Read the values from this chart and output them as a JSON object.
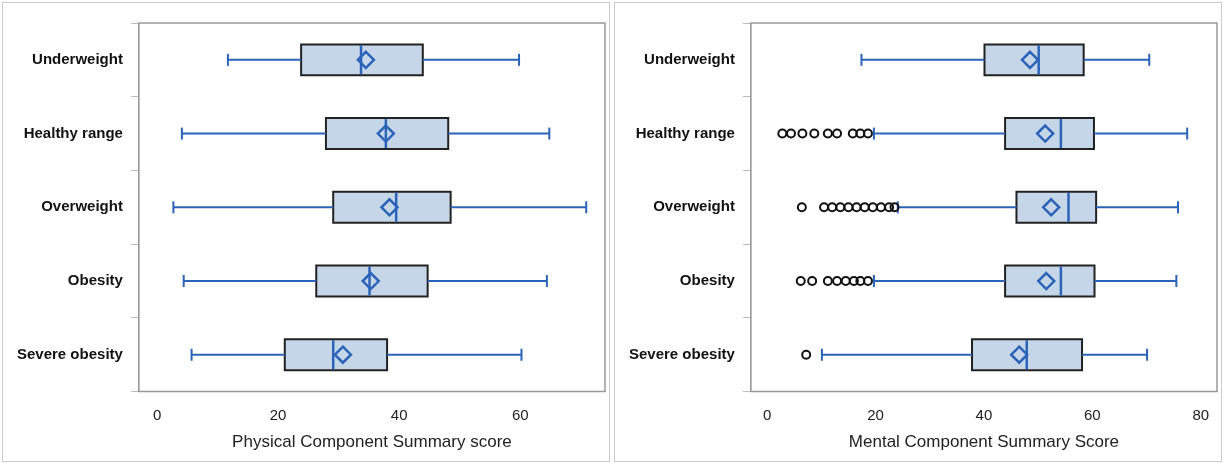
{
  "chart_data": [
    {
      "type": "box",
      "orientation": "horizontal",
      "xlabel": "Physical Component Summary score",
      "categories": [
        "Underweight",
        "Healthy range",
        "Overweight",
        "Obesity",
        "Severe obesity"
      ],
      "color": "#c5d6e9",
      "marker": "diamond",
      "xlim": [
        -3,
        74
      ],
      "xticks": [
        0,
        20,
        40,
        60
      ],
      "boxes": [
        {
          "low": 11.7,
          "q1": 23.8,
          "median": 33.7,
          "q3": 43.9,
          "high": 59.8,
          "mean": 34.5
        },
        {
          "low": 4.1,
          "q1": 27.9,
          "median": 37.8,
          "q3": 48.1,
          "high": 64.8,
          "mean": 37.8
        },
        {
          "low": 2.7,
          "q1": 29.1,
          "median": 39.5,
          "q3": 48.5,
          "high": 70.9,
          "mean": 38.4
        },
        {
          "low": 4.4,
          "q1": 26.3,
          "median": 35.1,
          "q3": 44.7,
          "high": 64.4,
          "mean": 35.3
        },
        {
          "low": 5.7,
          "q1": 21.1,
          "median": 29.1,
          "q3": 38.0,
          "high": 60.2,
          "mean": 30.7
        }
      ]
    },
    {
      "type": "box",
      "orientation": "horizontal",
      "xlabel": "Mental Component Summary Score",
      "categories": [
        "Underweight",
        "Healthy range",
        "Overweight",
        "Obesity",
        "Severe obesity"
      ],
      "color": "#c5d6e9",
      "marker": "diamond",
      "xlim": [
        -3,
        83
      ],
      "xticks": [
        0,
        20,
        40,
        60,
        80
      ],
      "boxes": [
        {
          "low": 17.4,
          "q1": 40.1,
          "median": 50.1,
          "q3": 58.4,
          "high": 70.5,
          "mean": 48.5
        },
        {
          "low": 19.7,
          "q1": 43.9,
          "median": 54.2,
          "q3": 60.3,
          "high": 77.5,
          "mean": 51.3,
          "outliers": [
            2.8,
            4.4,
            6.5,
            8.7,
            11.2,
            12.9,
            15.8,
            17.2,
            18.6
          ]
        },
        {
          "low": 24.1,
          "q1": 46.0,
          "median": 55.6,
          "q3": 60.7,
          "high": 75.8,
          "mean": 52.4,
          "outliers": [
            6.4,
            10.5,
            12,
            13.5,
            15,
            16.5,
            18,
            19.5,
            21,
            22.5,
            23.5
          ]
        },
        {
          "low": 19.7,
          "q1": 43.9,
          "median": 54.2,
          "q3": 60.4,
          "high": 75.5,
          "mean": 51.5,
          "outliers": [
            6.2,
            8.3,
            11.2,
            12.9,
            14.5,
            16,
            17.2,
            18.6
          ]
        },
        {
          "low": 10.1,
          "q1": 37.8,
          "median": 47.9,
          "q3": 58.1,
          "high": 70.1,
          "mean": 46.5,
          "outliers": [
            7.2
          ]
        }
      ]
    }
  ]
}
